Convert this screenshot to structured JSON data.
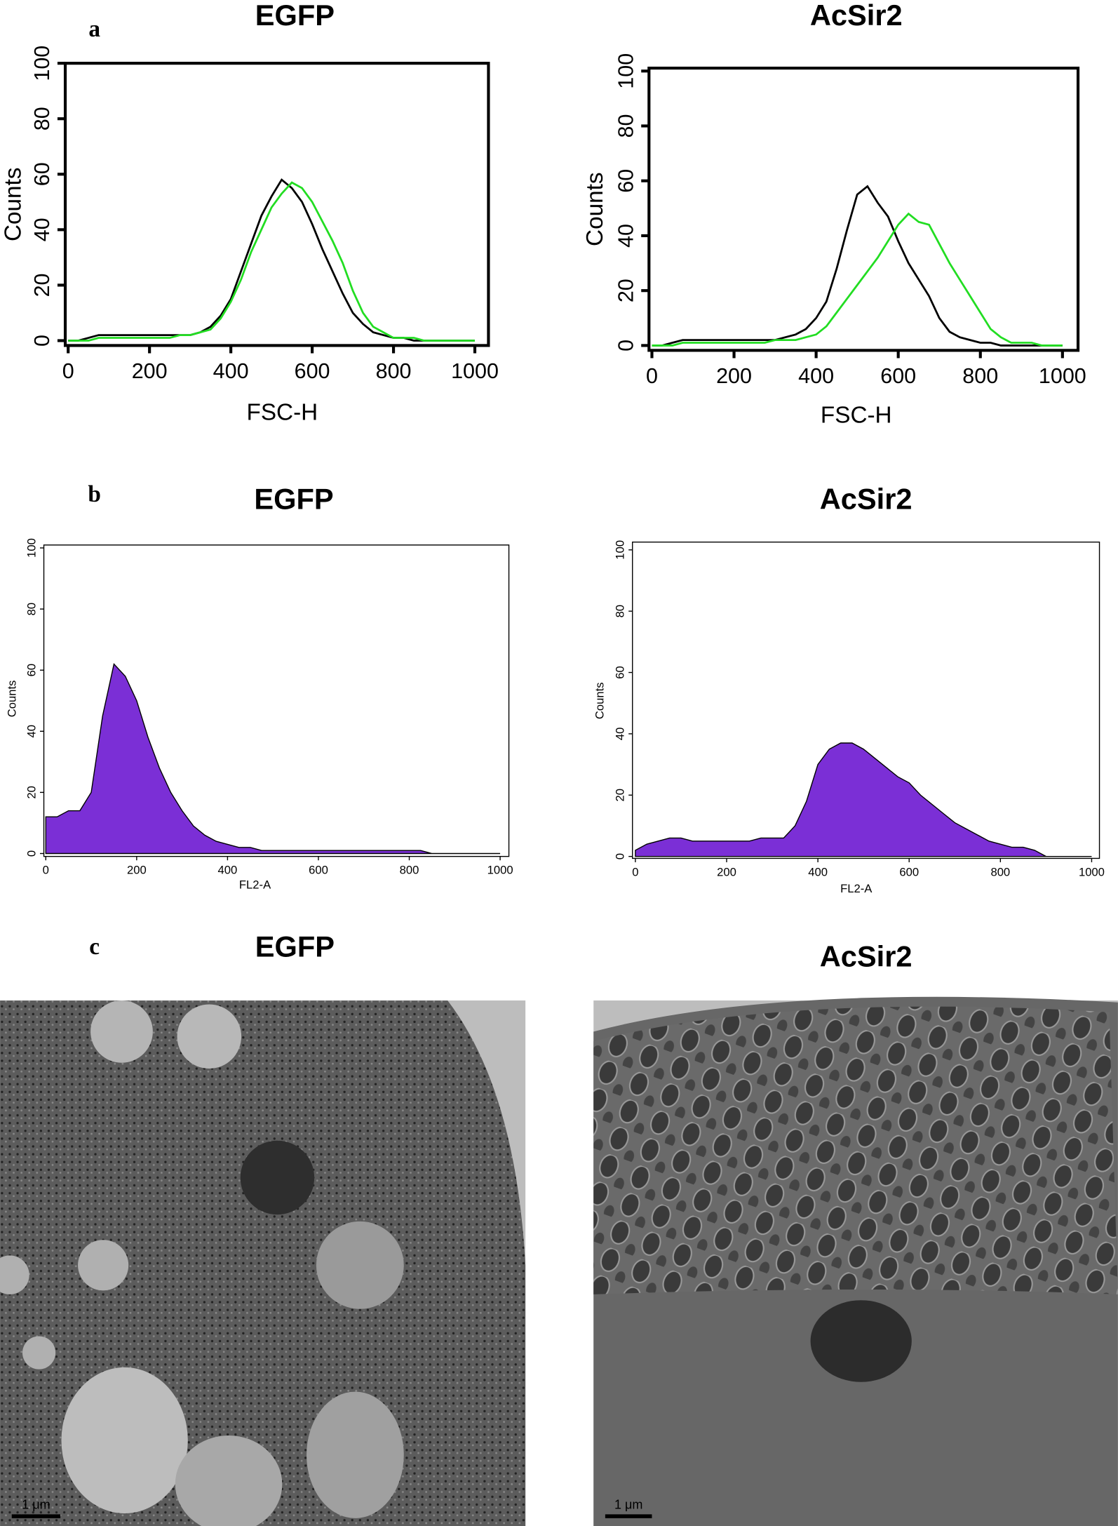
{
  "panels": [
    "a",
    "b",
    "c"
  ],
  "chart_data": [
    {
      "type": "line",
      "title": "EGFP",
      "xlabel": "FSC-H",
      "ylabel": "Counts",
      "x": [
        0,
        25,
        50,
        75,
        100,
        125,
        150,
        175,
        200,
        225,
        250,
        275,
        300,
        325,
        350,
        375,
        400,
        425,
        450,
        475,
        500,
        525,
        550,
        575,
        600,
        625,
        650,
        675,
        700,
        725,
        750,
        775,
        800,
        825,
        850,
        875,
        900,
        925,
        950,
        975,
        1000
      ],
      "series": [
        {
          "color": "#000000",
          "values": [
            0,
            0,
            1,
            2,
            2,
            2,
            2,
            2,
            2,
            2,
            2,
            2,
            2,
            3,
            5,
            9,
            15,
            25,
            35,
            45,
            52,
            58,
            55,
            50,
            42,
            33,
            25,
            17,
            10,
            6,
            3,
            2,
            1,
            1,
            0,
            0,
            0,
            0,
            0,
            0,
            0
          ]
        },
        {
          "color": "#22dd22",
          "values": [
            0,
            0,
            0,
            1,
            1,
            1,
            1,
            1,
            1,
            1,
            1,
            2,
            2,
            3,
            4,
            8,
            14,
            22,
            32,
            40,
            48,
            53,
            57,
            55,
            50,
            43,
            36,
            28,
            18,
            10,
            5,
            3,
            1,
            1,
            1,
            0,
            0,
            0,
            0,
            0,
            0
          ]
        }
      ],
      "xlim": [
        0,
        1000
      ],
      "xticks": [
        0,
        200,
        400,
        600,
        800,
        1000
      ],
      "ylim": [
        0,
        100
      ],
      "yticks": [
        0,
        20,
        40,
        60,
        80,
        100
      ]
    },
    {
      "type": "line",
      "title": "AcSir2",
      "xlabel": "FSC-H",
      "ylabel": "Counts",
      "x": [
        0,
        25,
        50,
        75,
        100,
        125,
        150,
        175,
        200,
        225,
        250,
        275,
        300,
        325,
        350,
        375,
        400,
        425,
        450,
        475,
        500,
        525,
        550,
        575,
        600,
        625,
        650,
        675,
        700,
        725,
        750,
        775,
        800,
        825,
        850,
        875,
        900,
        925,
        950,
        975,
        1000
      ],
      "series": [
        {
          "color": "#000000",
          "values": [
            0,
            0,
            1,
            2,
            2,
            2,
            2,
            2,
            2,
            2,
            2,
            2,
            2,
            3,
            4,
            6,
            10,
            16,
            28,
            42,
            55,
            58,
            52,
            47,
            38,
            30,
            24,
            18,
            10,
            5,
            3,
            2,
            1,
            1,
            0,
            0,
            0,
            0,
            0,
            0,
            0
          ]
        },
        {
          "color": "#22dd22",
          "values": [
            0,
            0,
            0,
            1,
            1,
            1,
            1,
            1,
            1,
            1,
            1,
            1,
            2,
            2,
            2,
            3,
            4,
            7,
            12,
            17,
            22,
            27,
            32,
            38,
            44,
            48,
            45,
            44,
            37,
            30,
            24,
            18,
            12,
            6,
            3,
            1,
            1,
            1,
            0,
            0,
            0
          ]
        }
      ],
      "xlim": [
        0,
        1000
      ],
      "xticks": [
        0,
        200,
        400,
        600,
        800,
        1000
      ],
      "ylim": [
        0,
        100
      ],
      "yticks": [
        0,
        20,
        40,
        60,
        80,
        100
      ]
    },
    {
      "type": "area",
      "title": "EGFP",
      "xlabel": "FL2-A",
      "ylabel": "Counts",
      "color": "#7b2fd6",
      "x": [
        0,
        25,
        50,
        75,
        100,
        125,
        150,
        175,
        200,
        225,
        250,
        275,
        300,
        325,
        350,
        375,
        400,
        425,
        450,
        475,
        500,
        525,
        550,
        575,
        600,
        625,
        650,
        675,
        700,
        725,
        750,
        775,
        800,
        825,
        850,
        875,
        900,
        925,
        950,
        975,
        1000
      ],
      "values": [
        12,
        12,
        14,
        14,
        20,
        45,
        62,
        58,
        50,
        38,
        28,
        20,
        14,
        9,
        6,
        4,
        3,
        2,
        2,
        1,
        1,
        1,
        1,
        1,
        1,
        1,
        1,
        1,
        1,
        1,
        1,
        1,
        1,
        1,
        0,
        0,
        0,
        0,
        0,
        0,
        0
      ],
      "xlim": [
        0,
        1000
      ],
      "xticks": [
        0,
        200,
        400,
        600,
        800,
        1000
      ],
      "ylim": [
        0,
        100
      ],
      "yticks": [
        0,
        20,
        40,
        60,
        80,
        100
      ]
    },
    {
      "type": "area",
      "title": "AcSir2",
      "xlabel": "FL2-A",
      "ylabel": "Counts",
      "color": "#7b2fd6",
      "x": [
        0,
        25,
        50,
        75,
        100,
        125,
        150,
        175,
        200,
        225,
        250,
        275,
        300,
        325,
        350,
        375,
        400,
        425,
        450,
        475,
        500,
        525,
        550,
        575,
        600,
        625,
        650,
        675,
        700,
        725,
        750,
        775,
        800,
        825,
        850,
        875,
        900,
        925,
        950,
        975,
        1000
      ],
      "values": [
        2,
        4,
        5,
        6,
        6,
        5,
        5,
        5,
        5,
        5,
        5,
        6,
        6,
        6,
        10,
        18,
        30,
        35,
        37,
        37,
        35,
        32,
        29,
        26,
        24,
        20,
        17,
        14,
        11,
        9,
        7,
        5,
        4,
        3,
        3,
        2,
        0,
        0,
        0,
        0,
        0
      ],
      "xlim": [
        0,
        1000
      ],
      "xticks": [
        0,
        200,
        400,
        600,
        800,
        1000
      ],
      "ylim": [
        0,
        100
      ],
      "yticks": [
        0,
        20,
        40,
        60,
        80,
        100
      ]
    }
  ],
  "images": [
    {
      "title": "EGFP",
      "scale_bar": "1 μm"
    },
    {
      "title": "AcSir2",
      "scale_bar": "1 μm"
    }
  ]
}
